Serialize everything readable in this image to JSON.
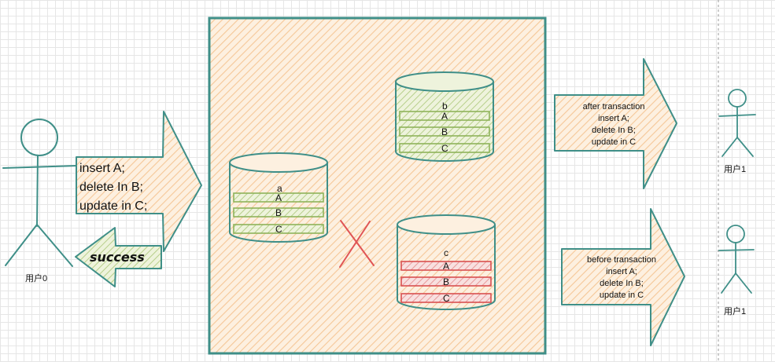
{
  "colors": {
    "teal": "#3f8f88",
    "orange_fill": "#fbe2c6",
    "green_fill": "#d9e6b7",
    "green_stroke": "#8fb35a",
    "red": "#e05555",
    "red_fill": "#f3c6c6"
  },
  "user0": {
    "label": "用户0",
    "request_lines": [
      "insert A;",
      "delete In B;",
      "update in C;"
    ],
    "response": "success"
  },
  "databases": {
    "a": {
      "name": "a",
      "rows": [
        "A",
        "B",
        "C"
      ],
      "status": "committed"
    },
    "b": {
      "name": "b",
      "rows": [
        "A",
        "B",
        "C"
      ],
      "status": "committed"
    },
    "c": {
      "name": "c",
      "rows": [
        "A",
        "B",
        "C"
      ],
      "status": "failed"
    }
  },
  "cross_mark": "x-icon",
  "user1_top": {
    "label": "用户1",
    "message_lines": [
      "after transaction",
      "insert A;",
      "delete In B;",
      "update in C"
    ]
  },
  "user1_bottom": {
    "label": "用户1",
    "message_lines": [
      "before transaction",
      "insert A;",
      "delete In B;",
      "update in C"
    ]
  }
}
